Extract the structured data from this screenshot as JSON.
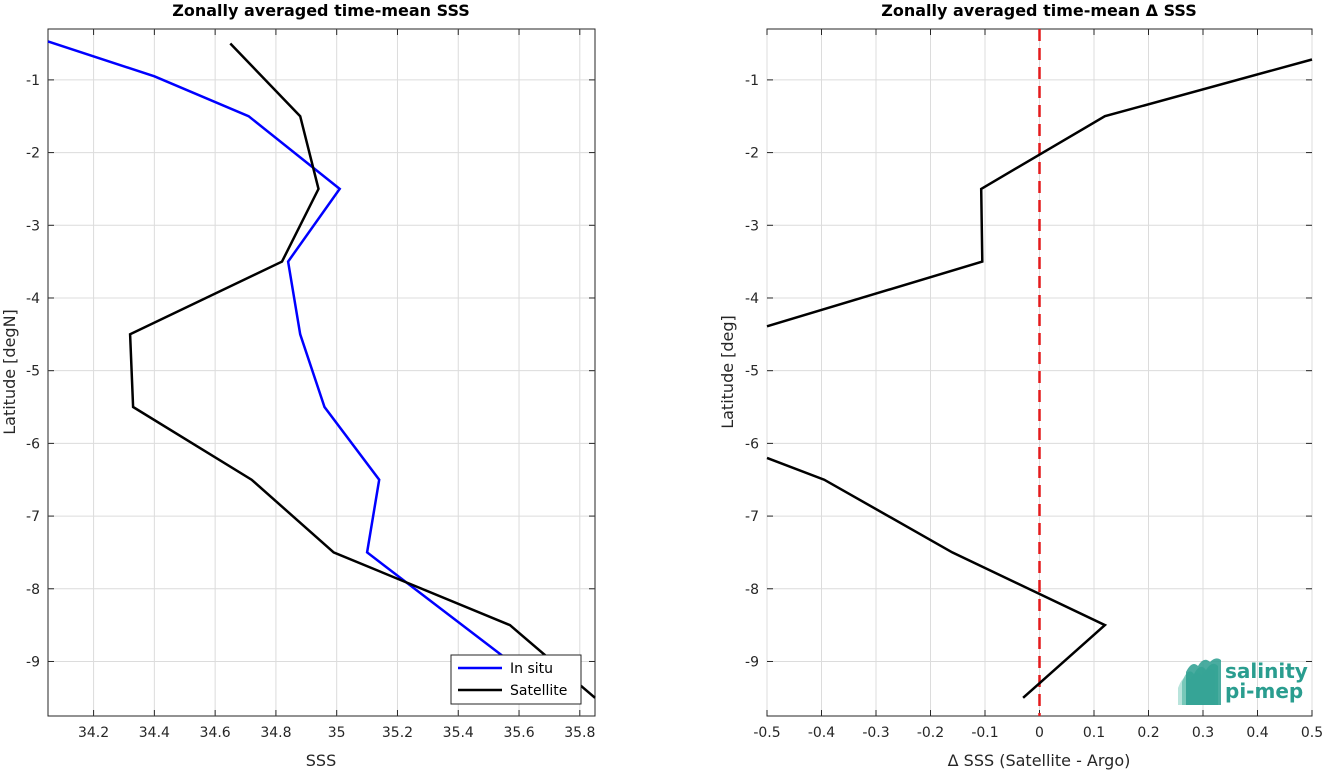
{
  "colors": {
    "in_situ": "#0000ff",
    "satellite": "#000000",
    "zero_line": "#e41a1c",
    "grid": "#dcdcdc",
    "axes": "#262626",
    "logo": "#2a9d8f"
  },
  "logo": {
    "line1": "salinity",
    "line2": "pi-mep"
  },
  "chart_data": [
    {
      "type": "line",
      "title": "Zonally averaged time-mean SSS",
      "xlabel": "SSS",
      "ylabel": "Latitude [degN]",
      "xlim": [
        34.05,
        35.85
      ],
      "ylim": [
        -9.75,
        -0.3
      ],
      "xticks": [
        34.2,
        34.4,
        34.6,
        34.8,
        35,
        35.2,
        35.4,
        35.6,
        35.8
      ],
      "xtick_labels": [
        "34.2",
        "34.4",
        "34.6",
        "34.8",
        "35",
        "35.2",
        "35.4",
        "35.6",
        "35.8"
      ],
      "yticks": [
        -1,
        -2,
        -3,
        -4,
        -5,
        -6,
        -7,
        -8,
        -9
      ],
      "ytick_labels": [
        "-1",
        "-2",
        "-3",
        "-4",
        "-5",
        "-6",
        "-7",
        "-8",
        "-9"
      ],
      "grid": true,
      "legend_position": "bottom-right",
      "series": [
        {
          "name": "In situ",
          "color": "#0000ff",
          "x": [
            34.05,
            34.4,
            34.71,
            35.01,
            34.84,
            34.88,
            34.96,
            35.14,
            35.1,
            35.57,
            35.7
          ],
          "y": [
            -0.47,
            -0.95,
            -1.5,
            -2.5,
            -3.5,
            -4.5,
            -5.5,
            -6.5,
            -7.5,
            -9.0,
            -9.2
          ]
        },
        {
          "name": "Satellite",
          "color": "#000000",
          "x": [
            34.65,
            34.88,
            34.94,
            34.82,
            34.32,
            34.33,
            34.72,
            34.99,
            35.57,
            35.85
          ],
          "y": [
            -0.5,
            -1.5,
            -2.5,
            -3.5,
            -4.5,
            -5.5,
            -6.5,
            -7.5,
            -8.5,
            -9.5
          ]
        }
      ]
    },
    {
      "type": "line",
      "title": "Zonally averaged time-mean Δ SSS",
      "xlabel": "Δ SSS (Satellite - Argo)",
      "ylabel": "Latitude [deg]",
      "xlim": [
        -0.5,
        0.5
      ],
      "ylim": [
        -9.75,
        -0.3
      ],
      "xticks": [
        -0.5,
        -0.4,
        -0.3,
        -0.2,
        -0.1,
        0,
        0.1,
        0.2,
        0.3,
        0.4,
        0.5
      ],
      "xtick_labels": [
        "-0.5",
        "-0.4",
        "-0.3",
        "-0.2",
        "-0.1",
        "0",
        "0.1",
        "0.2",
        "0.3",
        "0.4",
        "0.5"
      ],
      "yticks": [
        -1,
        -2,
        -3,
        -4,
        -5,
        -6,
        -7,
        -8,
        -9
      ],
      "ytick_labels": [
        "-1",
        "-2",
        "-3",
        "-4",
        "-5",
        "-6",
        "-7",
        "-8",
        "-9"
      ],
      "grid": true,
      "zero_line": {
        "x": 0,
        "color": "#e41a1c",
        "style": "dashed"
      },
      "series": [
        {
          "color": "#000000",
          "segments": [
            {
              "x": [
                0.5,
                0.12,
                -0.107,
                -0.105,
                -0.5
              ],
              "y": [
                -0.72,
                -1.5,
                -2.5,
                -3.5,
                -4.39
              ]
            },
            {
              "x": [
                -0.5,
                -0.395,
                -0.16,
                0.12,
                -0.03
              ],
              "y": [
                -6.2,
                -6.5,
                -7.5,
                -8.5,
                -9.5
              ]
            }
          ]
        }
      ]
    }
  ]
}
